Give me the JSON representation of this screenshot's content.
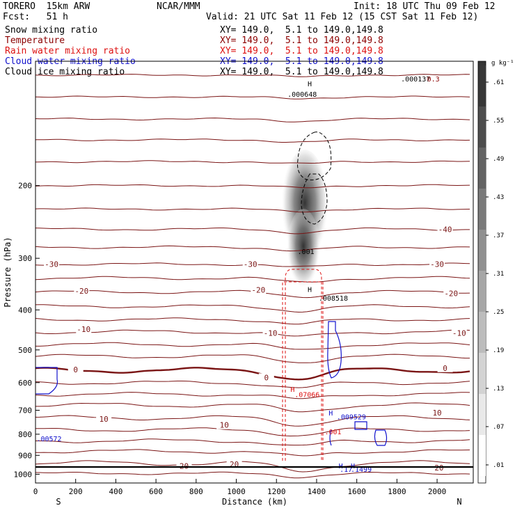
{
  "header": {
    "model": "TORERO  15km ARW",
    "org": "NCAR/MMM",
    "init": "Init: 18 UTC Thu 09 Feb 12",
    "fcst": "Fcst:   51 h",
    "valid": "Valid: 21 UTC Sat 11 Feb 12 (15 CST Sat 11 Feb 12)",
    "xy_range": "XY= 149.0,  5.1 to 149.0,149.8"
  },
  "fields": [
    {
      "label": "Snow mixing ratio",
      "color": "#000000"
    },
    {
      "label": "Temperature",
      "color": "#8b0000"
    },
    {
      "label": "Rain water mixing ratio",
      "color": "#dd1111"
    },
    {
      "label": "Cloud water mixing ratio",
      "color": "#1111cc"
    },
    {
      "label": "Cloud ice mixing ratio",
      "color": "#000000"
    }
  ],
  "chart_data": {
    "type": "contour cross-section",
    "xlabel": "Distance (km)",
    "ylabel": "Pressure (hPa)",
    "xlim": [
      0,
      2180
    ],
    "ylim": [
      1050,
      100
    ],
    "y_scale": "log",
    "x_ticks": [
      0,
      200,
      400,
      600,
      800,
      1000,
      1200,
      1400,
      1600,
      1800,
      2000
    ],
    "y_ticks": [
      200,
      300,
      400,
      500,
      600,
      700,
      800,
      900,
      1000
    ],
    "x_end_labels": {
      "left": "S",
      "right": "N"
    },
    "colorbar": {
      "unit": "g kg⁻¹",
      "ticks": [
        ".01",
        ".07",
        ".13",
        ".19",
        ".25",
        ".31",
        ".37",
        ".43",
        ".49",
        ".55",
        ".61"
      ]
    },
    "temperature_labels": [
      {
        "text": "-40",
        "x": 2040,
        "p": 255
      },
      {
        "text": "-30",
        "x": 80,
        "p": 310
      },
      {
        "text": "-30",
        "x": 1070,
        "p": 310
      },
      {
        "text": "-30",
        "x": 2000,
        "p": 310
      },
      {
        "text": "-20",
        "x": 230,
        "p": 360
      },
      {
        "text": "-20",
        "x": 1110,
        "p": 358
      },
      {
        "text": "-20",
        "x": 2070,
        "p": 365
      },
      {
        "text": "-10",
        "x": 240,
        "p": 445
      },
      {
        "text": "-10",
        "x": 1170,
        "p": 455
      },
      {
        "text": "-10",
        "x": 2110,
        "p": 455
      },
      {
        "text": "0",
        "x": 200,
        "p": 558
      },
      {
        "text": "0",
        "x": 1150,
        "p": 583
      },
      {
        "text": "0",
        "x": 2040,
        "p": 553
      },
      {
        "text": "10",
        "x": 340,
        "p": 735
      },
      {
        "text": "10",
        "x": 940,
        "p": 760
      },
      {
        "text": "10",
        "x": 2000,
        "p": 710
      },
      {
        "text": "20",
        "x": 740,
        "p": 955
      },
      {
        "text": "20",
        "x": 990,
        "p": 945
      },
      {
        "text": "20",
        "x": 2010,
        "p": 965
      }
    ],
    "maxima_labels": [
      {
        "text": "H",
        "x": 1355,
        "p": 115,
        "color": "#000000"
      },
      {
        "text": ".000648",
        "x": 1255,
        "p": 122,
        "color": "#000000"
      },
      {
        "text": ".000137",
        "x": 1820,
        "p": 112,
        "color": "#000000"
      },
      {
        "text": "0.3",
        "x": 1950,
        "p": 112,
        "color": "#8b0000"
      },
      {
        "text": ".001",
        "x": 1305,
        "p": 293,
        "color": "#000000"
      },
      {
        "text": "H",
        "x": 1355,
        "p": 362,
        "color": "#000000"
      },
      {
        "text": ".008518",
        "x": 1410,
        "p": 380,
        "color": "#000000"
      },
      {
        "text": "H",
        "x": 1270,
        "p": 632,
        "color": "#dd1111"
      },
      {
        "text": ".07066",
        "x": 1290,
        "p": 650,
        "color": "#dd1111"
      },
      {
        "text": "H",
        "x": 1460,
        "p": 720,
        "color": "#1111cc"
      },
      {
        "text": ".009529",
        "x": 1500,
        "p": 736,
        "color": "#1111cc"
      },
      {
        "text": ".001",
        "x": 1440,
        "p": 800,
        "color": "#dd1111"
      },
      {
        "text": ".00572",
        "x": 5,
        "p": 832,
        "color": "#1111cc"
      },
      {
        "text": "H",
        "x": 1510,
        "p": 968,
        "color": "#1111cc"
      },
      {
        "text": "H",
        "x": 1570,
        "p": 968,
        "color": "#1111cc"
      },
      {
        "text": ".17",
        "x": 1515,
        "p": 987,
        "color": "#1111cc"
      },
      {
        "text": ".1499",
        "x": 1570,
        "p": 987,
        "color": "#1111cc"
      }
    ]
  }
}
